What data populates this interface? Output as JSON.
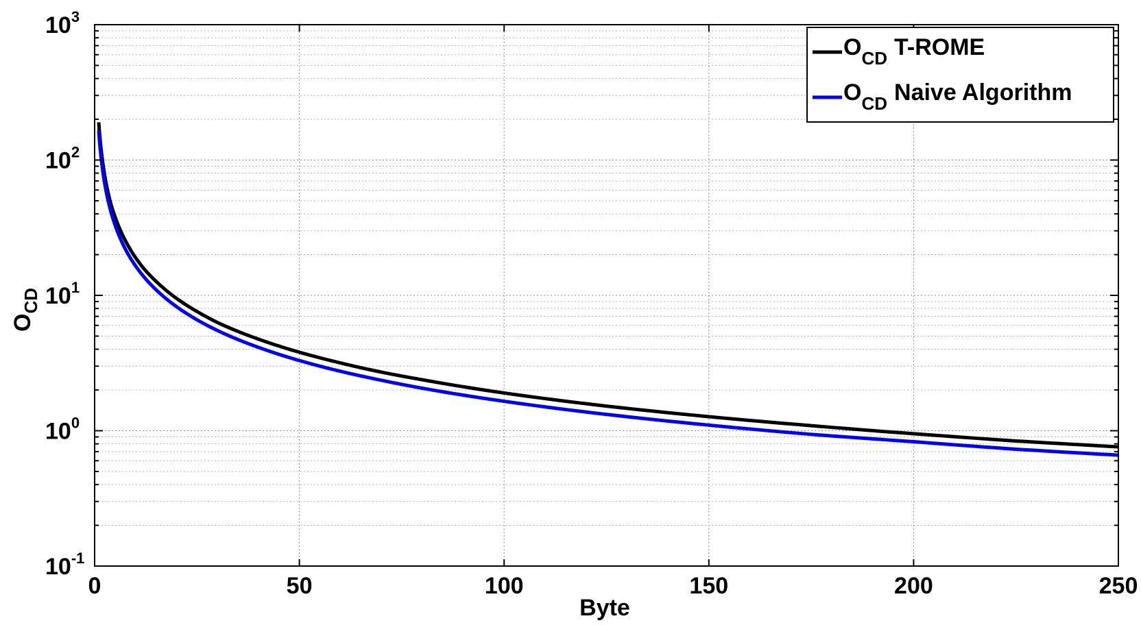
{
  "chart_data": {
    "type": "line",
    "xlabel": {
      "main": "Byte"
    },
    "ylabel": {
      "main": "O",
      "sub": "CD"
    },
    "xlim": [
      0,
      250
    ],
    "ylim": [
      0.1,
      1000
    ],
    "yscale": "log",
    "grid": true,
    "x_ticks": [
      "0",
      "50",
      "100",
      "150",
      "200",
      "250"
    ],
    "y_ticks": [
      {
        "base": "10",
        "exp": "-1"
      },
      {
        "base": "10",
        "exp": "0"
      },
      {
        "base": "10",
        "exp": "1"
      },
      {
        "base": "10",
        "exp": "2"
      },
      {
        "base": "10",
        "exp": "3"
      }
    ],
    "legend_position": "top-right",
    "x": [
      1,
      2,
      3,
      4,
      5,
      6,
      8,
      10,
      12,
      15,
      20,
      25,
      30,
      40,
      50,
      60,
      70,
      80,
      100,
      125,
      150,
      175,
      200,
      225,
      250
    ],
    "series": [
      {
        "name_main": "O",
        "name_sub": "CD",
        "name_rest": "T-ROME",
        "color": "#000000",
        "values": [
          190,
          95,
          63,
          47,
          38,
          31.7,
          23.8,
          19,
          15.8,
          12.7,
          9.5,
          7.6,
          6.3,
          4.75,
          3.8,
          3.17,
          2.71,
          2.38,
          1.9,
          1.52,
          1.27,
          1.09,
          0.95,
          0.84,
          0.76
        ]
      },
      {
        "name_main": "O",
        "name_sub": "CD",
        "name_rest": "Naive Algorithm",
        "color": "#0000ff",
        "values": [
          165,
          82.5,
          55,
          41.3,
          33,
          27.5,
          20.6,
          16.5,
          13.75,
          11,
          8.25,
          6.6,
          5.5,
          4.13,
          3.3,
          2.75,
          2.36,
          2.06,
          1.65,
          1.32,
          1.1,
          0.94,
          0.83,
          0.73,
          0.66
        ]
      }
    ]
  }
}
